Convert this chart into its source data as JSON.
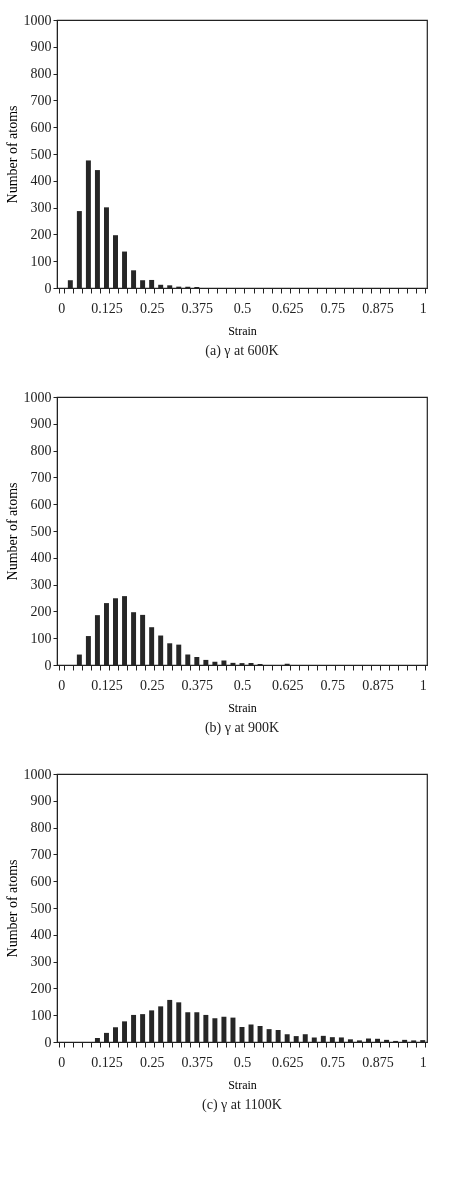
{
  "chart_data": [
    {
      "type": "bar",
      "title": "(a)  γ at 600K",
      "xlabel": "Strain",
      "ylabel": "Number of atoms",
      "color": "#262626",
      "grid": false,
      "categories": [
        "0",
        null,
        null,
        null,
        null,
        "0.125",
        null,
        null,
        null,
        null,
        "0.25",
        null,
        null,
        null,
        null,
        "0.375",
        null,
        null,
        null,
        null,
        "0.5",
        null,
        null,
        null,
        null,
        "0.625",
        null,
        null,
        null,
        null,
        "0.75",
        null,
        null,
        null,
        null,
        "0.875",
        null,
        null,
        null,
        null,
        "1"
      ],
      "values": [
        0,
        29,
        287,
        476,
        440,
        301,
        197,
        136,
        66,
        29,
        30,
        12,
        10,
        5,
        5,
        4,
        0,
        0,
        0,
        0,
        null,
        0,
        0,
        0,
        0,
        0,
        0,
        0,
        0,
        0,
        0,
        0,
        0,
        0,
        0,
        0,
        0,
        0,
        0,
        0,
        0
      ],
      "ylim": [
        0,
        1000
      ],
      "yticks": [
        0,
        100,
        200,
        300,
        400,
        500,
        600,
        700,
        800,
        900,
        1000
      ]
    },
    {
      "type": "bar",
      "title": "(b)  γ at 900K",
      "xlabel": "Strain",
      "ylabel": "Number of atoms",
      "color": "#262626",
      "grid": false,
      "categories": [
        "0",
        null,
        null,
        null,
        null,
        "0.125",
        null,
        null,
        null,
        null,
        "0.25",
        null,
        null,
        null,
        null,
        "0.375",
        null,
        null,
        null,
        null,
        "0.5",
        null,
        null,
        null,
        null,
        "0.625",
        null,
        null,
        null,
        null,
        "0.75",
        null,
        null,
        null,
        null,
        "0.875",
        null,
        null,
        null,
        null,
        "1"
      ],
      "values": [
        0,
        null,
        39,
        108,
        186,
        231,
        249,
        257,
        197,
        187,
        141,
        110,
        81,
        76,
        39,
        30,
        19,
        12,
        17,
        8,
        7,
        7,
        4,
        0,
        null,
        5,
        0,
        0,
        0,
        null,
        0,
        0,
        0,
        0,
        0,
        0,
        0,
        0,
        0,
        0,
        0
      ],
      "ylim": [
        0,
        1000
      ],
      "yticks": [
        0,
        100,
        200,
        300,
        400,
        500,
        600,
        700,
        800,
        900,
        1000
      ]
    },
    {
      "type": "bar",
      "title": "(c)  γ at 1100K",
      "xlabel": "Strain",
      "ylabel": "Number of atoms",
      "color": "#262626",
      "grid": false,
      "categories": [
        "0",
        null,
        null,
        null,
        null,
        "0.125",
        null,
        null,
        null,
        null,
        "0.25",
        null,
        null,
        null,
        null,
        "0.375",
        null,
        null,
        null,
        null,
        "0.5",
        null,
        null,
        null,
        null,
        "0.625",
        null,
        null,
        null,
        null,
        "0.75",
        null,
        null,
        null,
        null,
        "0.875",
        null,
        null,
        null,
        null,
        "1"
      ],
      "values": [
        0,
        0,
        null,
        null,
        15,
        34,
        55,
        77,
        101,
        104,
        118,
        133,
        157,
        148,
        111,
        111,
        101,
        89,
        94,
        91,
        56,
        65,
        60,
        48,
        45,
        29,
        22,
        29,
        17,
        23,
        18,
        17,
        10,
        6,
        13,
        12,
        8,
        4,
        8,
        6,
        7
      ],
      "ylim": [
        0,
        1000
      ],
      "yticks": [
        0,
        100,
        200,
        300,
        400,
        500,
        600,
        700,
        800,
        900,
        1000
      ]
    }
  ]
}
